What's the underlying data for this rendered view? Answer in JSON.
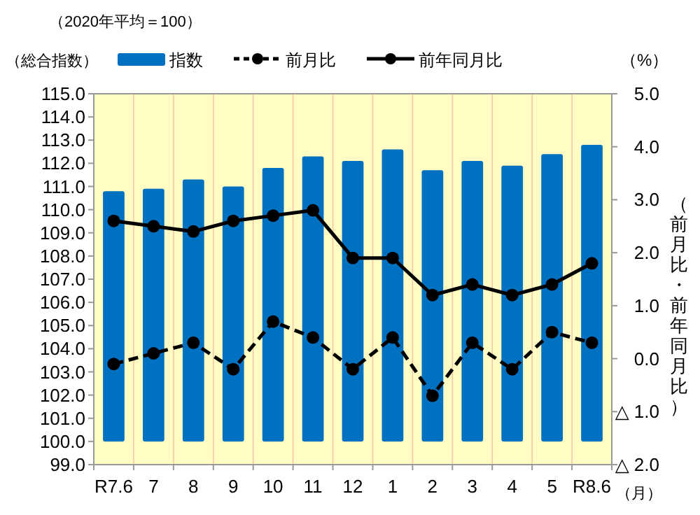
{
  "chart_data": {
    "type": "bar",
    "subtitle": "（2020年平均＝100）",
    "ylabel": "（総合指数）",
    "y2label": "（前月比・前年同月比）",
    "xlabel": "（月）",
    "annotations": [
      "（%）"
    ],
    "categories": [
      "R7.6",
      "7",
      "8",
      "9",
      "10",
      "11",
      "12",
      "1",
      "2",
      "3",
      "4",
      "5",
      "R8.6"
    ],
    "series": [
      {
        "name": "指数",
        "color": "#0070c0",
        "base": [
          100,
          100,
          100,
          100,
          100,
          100,
          100,
          100,
          100,
          100,
          100,
          100,
          100
        ],
        "values": [
          10.8,
          10.9,
          11.3,
          11.0,
          11.8,
          12.3,
          12.1,
          12.6,
          11.7,
          12.1,
          11.9,
          12.4,
          12.8
        ]
      },
      {
        "name": "前月比",
        "type": "line",
        "axis": "y2",
        "color": "#000000",
        "marker": "circle",
        "line_style": "dashed",
        "values": [
          -0.1,
          0.1,
          0.3,
          -0.2,
          0.7,
          0.4,
          -0.2,
          0.4,
          -0.7,
          0.3,
          -0.2,
          0.5,
          0.3
        ]
      },
      {
        "name": "前年同月比",
        "type": "line",
        "axis": "y2",
        "color": "#000000",
        "marker": "circle",
        "line_style": "solid",
        "values": [
          2.6,
          2.5,
          2.4,
          2.6,
          2.7,
          2.8,
          1.9,
          1.9,
          1.2,
          1.4,
          1.2,
          1.4,
          1.8
        ]
      }
    ],
    "ylim": [
      99,
      115
    ],
    "yticks": [
      {
        "value": 99,
        "label": "99.0"
      },
      {
        "value": 100,
        "label": "100.0"
      },
      {
        "value": 101,
        "label": "101.0"
      },
      {
        "value": 102,
        "label": "102.0"
      },
      {
        "value": 103,
        "label": "103.0"
      },
      {
        "value": 104,
        "label": "104.0"
      },
      {
        "value": 105,
        "label": "105.0"
      },
      {
        "value": 106,
        "label": "106.0"
      },
      {
        "value": 107,
        "label": "107.0"
      },
      {
        "value": 108,
        "label": "108.0"
      },
      {
        "value": 109,
        "label": "109.0"
      },
      {
        "value": 110,
        "label": "110.0"
      },
      {
        "value": 111,
        "label": "111.0"
      },
      {
        "value": 112,
        "label": "112.0"
      },
      {
        "value": 113,
        "label": "113.0"
      },
      {
        "value": 114,
        "label": "114.0"
      },
      {
        "value": 115,
        "label": "115.0"
      }
    ],
    "y2lim": [
      -2,
      5
    ],
    "y2ticks": [
      {
        "value": -2,
        "label": "△ 2.0"
      },
      {
        "value": -1,
        "label": "△ 1.0"
      },
      {
        "value": 0,
        "label": "0.0"
      },
      {
        "value": 1,
        "label": "1.0"
      },
      {
        "value": 2,
        "label": "2.0"
      },
      {
        "value": 3,
        "label": "3.0"
      },
      {
        "value": 4,
        "label": "4.0"
      },
      {
        "value": 5,
        "label": "5.0"
      }
    ],
    "grid": "x",
    "legend": "top"
  }
}
